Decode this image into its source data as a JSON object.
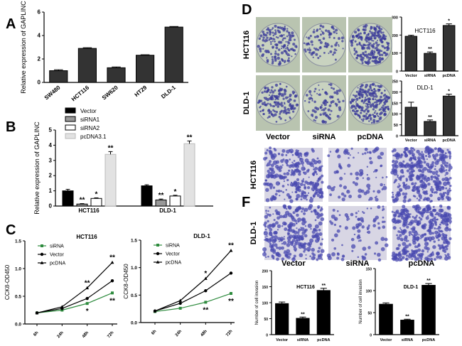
{
  "panels": {
    "A": "A",
    "B": "B",
    "C": "C",
    "D": "D",
    "F": "F"
  },
  "photos": {
    "D": {
      "rows": [
        "HCT116",
        "DLD-1"
      ],
      "cols": [
        "Vector",
        "siRNA",
        "pcDNA"
      ],
      "colony_color": "#3a3a9a",
      "plate_color": "#c9d3c0"
    },
    "F": {
      "rows": [
        "HCT116",
        "DLD-1"
      ],
      "cols": [
        "Vector",
        "siRNA",
        "pcDNA"
      ],
      "cell_color": "#4a4ab0",
      "field_color": "#d8d6e4"
    }
  },
  "chart_data": [
    {
      "panel": "A",
      "type": "bar",
      "categories": [
        "SW480",
        "HCT116",
        "SW620",
        "HT29",
        "DLD-1"
      ],
      "values": [
        1.0,
        2.9,
        1.25,
        2.32,
        4.72
      ],
      "errors": [
        0.08,
        0.06,
        0.07,
        0.04,
        0.05
      ],
      "ylabel": "Relative expression of GAPLINC",
      "ylim": [
        0,
        6
      ],
      "yticks": [
        "0",
        "2",
        "4",
        "6"
      ],
      "color": "#333333"
    },
    {
      "panel": "B",
      "type": "bar",
      "categories": [
        "HCT116",
        "DLD-1"
      ],
      "ylabel": "Relative expression of GAPLINC",
      "ylim": [
        0,
        5
      ],
      "yticks": [
        "0",
        "1",
        "2",
        "3",
        "4",
        "5"
      ],
      "legend": "top-left",
      "series": [
        {
          "name": "Vector",
          "values": [
            1.0,
            1.33
          ],
          "errors": [
            0.1,
            0.07
          ],
          "sig": [
            "",
            ""
          ],
          "color": "#000000"
        },
        {
          "name": "siRNA1",
          "values": [
            0.13,
            0.4
          ],
          "errors": [
            0.03,
            0.06
          ],
          "sig": [
            "**",
            "**"
          ],
          "color": "#999999"
        },
        {
          "name": "siRNA2",
          "values": [
            0.5,
            0.66
          ],
          "errors": [
            0.04,
            0.05
          ],
          "sig": [
            "*",
            "*"
          ],
          "color": "#ffffff"
        },
        {
          "name": "pcDNA3.1",
          "values": [
            3.4,
            4.1
          ],
          "errors": [
            0.18,
            0.18
          ],
          "sig": [
            "**",
            "**"
          ],
          "color": "#e2e2e2"
        }
      ]
    },
    {
      "panel": "C",
      "type": "line",
      "title": "HCT116",
      "x": [
        "6h",
        "24h",
        "48h",
        "72h"
      ],
      "ylabel": "CCK8-OD450",
      "ylim": [
        0,
        1.5
      ],
      "yticks": [
        "0.0",
        "0.5",
        "1.0",
        "1.5"
      ],
      "legend": "top-left",
      "series": [
        {
          "name": "siRNA",
          "values": [
            0.2,
            0.25,
            0.37,
            0.56
          ],
          "color": "#2e8b3e",
          "marker": "square"
        },
        {
          "name": "Vector",
          "values": [
            0.2,
            0.28,
            0.46,
            0.78
          ],
          "color": "#000000",
          "marker": "circle"
        },
        {
          "name": "pcDNA",
          "values": [
            0.2,
            0.31,
            0.65,
            1.11
          ],
          "color": "#000000",
          "marker": "triangle"
        }
      ],
      "annotations": [
        {
          "x": "48h",
          "series": "pcDNA",
          "text": "**",
          "pos": "above"
        },
        {
          "x": "48h",
          "series": "siRNA",
          "text": "*",
          "pos": "below"
        },
        {
          "x": "72h",
          "series": "pcDNA",
          "text": "**",
          "pos": "above"
        },
        {
          "x": "72h",
          "series": "siRNA",
          "text": "**",
          "pos": "below"
        }
      ]
    },
    {
      "panel": "C",
      "type": "line",
      "title": "DLD-1",
      "x": [
        "6h",
        "24h",
        "48h",
        "72h"
      ],
      "ylabel": "CCK8-OD450",
      "ylim": [
        0,
        1.5
      ],
      "yticks": [
        "0.0",
        "0.5",
        "1.0",
        "1.5"
      ],
      "legend": "top-left",
      "series": [
        {
          "name": "siRNA",
          "values": [
            0.2,
            0.26,
            0.37,
            0.53
          ],
          "color": "#2e8b3e",
          "marker": "square"
        },
        {
          "name": "Vector",
          "values": [
            0.21,
            0.35,
            0.58,
            0.9
          ],
          "color": "#000000",
          "marker": "circle"
        },
        {
          "name": "pcDNA",
          "values": [
            0.21,
            0.4,
            0.8,
            1.31
          ],
          "color": "#000000",
          "marker": "triangle"
        }
      ],
      "annotations": [
        {
          "x": "48h",
          "series": "pcDNA",
          "text": "*",
          "pos": "above"
        },
        {
          "x": "48h",
          "series": "siRNA",
          "text": "**",
          "pos": "below"
        },
        {
          "x": "72h",
          "series": "pcDNA",
          "text": "**",
          "pos": "above"
        },
        {
          "x": "72h",
          "series": "siRNA",
          "text": "**",
          "pos": "below"
        }
      ]
    },
    {
      "panel": "D",
      "type": "bar",
      "title": "HCT116",
      "categories": [
        "Vector",
        "siRNA",
        "pcDNA"
      ],
      "values": [
        193,
        98,
        253
      ],
      "errors": [
        6,
        8,
        9
      ],
      "sig": [
        "",
        "**",
        "*"
      ],
      "ylabel": "Number of colonies",
      "ylim": [
        0,
        300
      ],
      "yticks": [
        "0",
        "100",
        "200",
        "300"
      ],
      "color": "#333333"
    },
    {
      "panel": "D",
      "type": "bar",
      "title": "DLD-1",
      "categories": [
        "Vector",
        "siRNA",
        "pcDNA"
      ],
      "values": [
        130,
        65,
        181
      ],
      "errors": [
        23,
        7,
        9
      ],
      "sig": [
        "",
        "**",
        "*"
      ],
      "ylabel": "Number of colonies",
      "ylim": [
        0,
        250
      ],
      "yticks": [
        "0",
        "50",
        "100",
        "150",
        "200",
        "250"
      ],
      "color": "#333333"
    },
    {
      "panel": "F",
      "type": "bar",
      "title": "HCT116",
      "categories": [
        "Vector",
        "siRNA",
        "pcDNA"
      ],
      "values": [
        97,
        51,
        138
      ],
      "errors": [
        5,
        4,
        7
      ],
      "sig": [
        "",
        "**",
        "**"
      ],
      "ylabel": "Number of cell invasion",
      "ylim": [
        0,
        200
      ],
      "yticks": [
        "0",
        "50",
        "100",
        "150",
        "200"
      ],
      "color": "#000000"
    },
    {
      "panel": "F",
      "type": "bar",
      "title": "DLD-1",
      "categories": [
        "Vector",
        "siRNA",
        "pcDNA"
      ],
      "values": [
        69,
        33,
        112
      ],
      "errors": [
        3,
        2,
        4
      ],
      "sig": [
        "",
        "**",
        "**"
      ],
      "ylabel": "Number of cell invasion",
      "ylim": [
        0,
        150
      ],
      "yticks": [
        "0",
        "50",
        "100",
        "150"
      ],
      "color": "#000000"
    }
  ]
}
